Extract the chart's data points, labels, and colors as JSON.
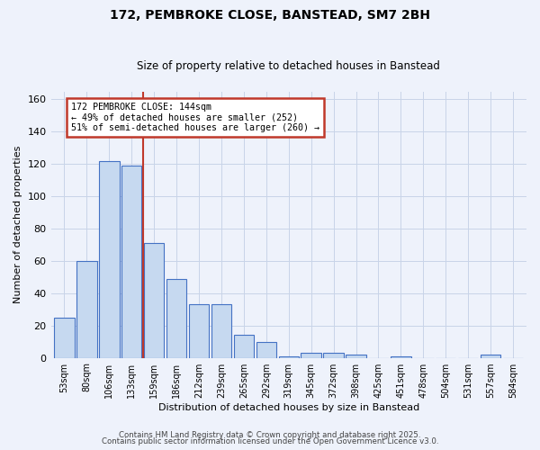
{
  "title": "172, PEMBROKE CLOSE, BANSTEAD, SM7 2BH",
  "subtitle": "Size of property relative to detached houses in Banstead",
  "xlabel": "Distribution of detached houses by size in Banstead",
  "ylabel": "Number of detached properties",
  "bar_labels": [
    "53sqm",
    "80sqm",
    "106sqm",
    "133sqm",
    "159sqm",
    "186sqm",
    "212sqm",
    "239sqm",
    "265sqm",
    "292sqm",
    "319sqm",
    "345sqm",
    "372sqm",
    "398sqm",
    "425sqm",
    "451sqm",
    "478sqm",
    "504sqm",
    "531sqm",
    "557sqm",
    "584sqm"
  ],
  "bar_values": [
    25,
    60,
    122,
    119,
    71,
    49,
    33,
    33,
    14,
    10,
    1,
    3,
    3,
    2,
    0,
    1,
    0,
    0,
    0,
    2,
    0
  ],
  "bar_color": "#c6d9f0",
  "bar_edge_color": "#4472c4",
  "vline_x": 3.5,
  "vline_color": "#c0392b",
  "annotation_line1": "172 PEMBROKE CLOSE: 144sqm",
  "annotation_line2": "← 49% of detached houses are smaller (252)",
  "annotation_line3": "51% of semi-detached houses are larger (260) →",
  "annotation_box_color": "#c0392b",
  "ylim": [
    0,
    165
  ],
  "yticks": [
    0,
    20,
    40,
    60,
    80,
    100,
    120,
    140,
    160
  ],
  "footer_line1": "Contains HM Land Registry data © Crown copyright and database right 2025.",
  "footer_line2": "Contains public sector information licensed under the Open Government Licence v3.0.",
  "bg_color": "#eef2fb",
  "grid_color": "#c8d4e8",
  "fig_bg_color": "#eef2fb"
}
